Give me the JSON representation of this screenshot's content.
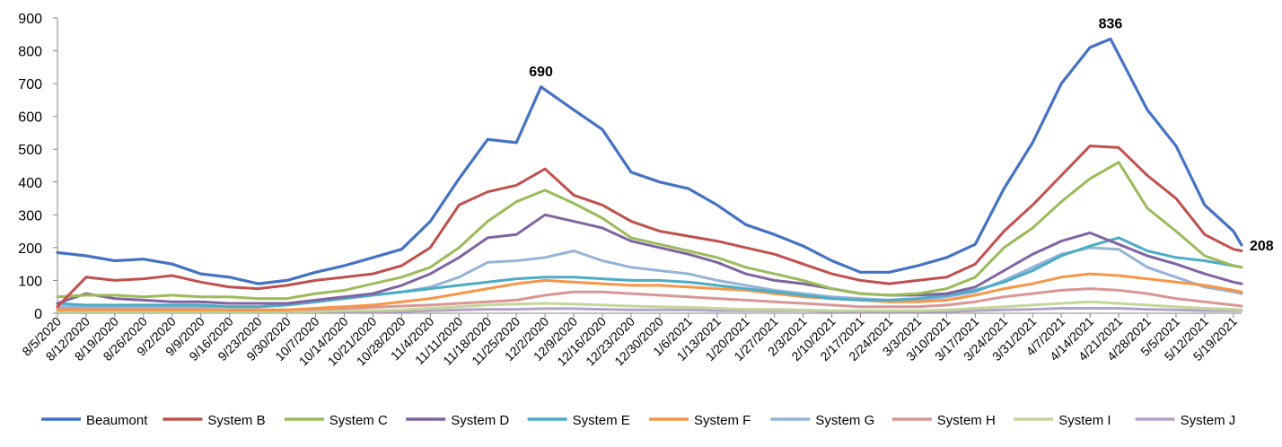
{
  "chart_data": {
    "type": "line",
    "title": "",
    "xlabel": "",
    "ylabel": "",
    "ylim": [
      0,
      900
    ],
    "yticks": [
      0,
      100,
      200,
      300,
      400,
      500,
      600,
      700,
      800,
      900
    ],
    "grid": false,
    "legend_position": "bottom",
    "x_start": "8/5/2020",
    "x_end": "5/21/2021",
    "x_tick_labels": [
      "8/5/2020",
      "8/12/2020",
      "8/19/2020",
      "8/26/2020",
      "9/2/2020",
      "9/9/2020",
      "9/16/2020",
      "9/23/2020",
      "9/30/2020",
      "10/7/2020",
      "10/14/2020",
      "10/21/2020",
      "10/28/2020",
      "11/4/2020",
      "11/11/2020",
      "11/18/2020",
      "11/25/2020",
      "12/2/2020",
      "12/9/2020",
      "12/16/2020",
      "12/23/2020",
      "12/30/2020",
      "1/6/2021",
      "1/13/2021",
      "1/20/2021",
      "1/27/2021",
      "2/3/2021",
      "2/10/2021",
      "2/17/2021",
      "2/24/2021",
      "3/3/2021",
      "3/10/2021",
      "3/17/2021",
      "3/24/2021",
      "3/31/2021",
      "4/7/2021",
      "4/14/2021",
      "4/21/2021",
      "4/28/2021",
      "5/5/2021",
      "5/12/2021",
      "5/19/2021"
    ],
    "series": [
      {
        "name": "Beaumont",
        "color": "#4472C4",
        "width": 3.2,
        "x": [
          "8/5/2020",
          "8/12/2020",
          "8/19/2020",
          "8/26/2020",
          "9/2/2020",
          "9/9/2020",
          "9/16/2020",
          "9/23/2020",
          "9/30/2020",
          "10/7/2020",
          "10/14/2020",
          "10/21/2020",
          "10/28/2020",
          "11/4/2020",
          "11/11/2020",
          "11/18/2020",
          "11/25/2020",
          "12/1/2020",
          "12/9/2020",
          "12/16/2020",
          "12/23/2020",
          "12/30/2020",
          "1/6/2021",
          "1/13/2021",
          "1/20/2021",
          "1/27/2021",
          "2/3/2021",
          "2/10/2021",
          "2/17/2021",
          "2/24/2021",
          "3/3/2021",
          "3/10/2021",
          "3/17/2021",
          "3/24/2021",
          "3/31/2021",
          "4/7/2021",
          "4/14/2021",
          "4/19/2021",
          "4/28/2021",
          "5/5/2021",
          "5/12/2021",
          "5/19/2021",
          "5/21/2021"
        ],
        "values": [
          185,
          175,
          160,
          165,
          150,
          120,
          110,
          90,
          100,
          125,
          145,
          170,
          195,
          280,
          410,
          530,
          520,
          690,
          620,
          560,
          430,
          400,
          380,
          330,
          270,
          240,
          205,
          160,
          125,
          125,
          145,
          170,
          210,
          380,
          520,
          700,
          810,
          836,
          620,
          510,
          330,
          250,
          208
        ]
      },
      {
        "name": "System B",
        "color": "#C0504D",
        "width": 3,
        "x": [
          "8/5/2020",
          "8/12/2020",
          "8/19/2020",
          "8/26/2020",
          "9/2/2020",
          "9/9/2020",
          "9/16/2020",
          "9/23/2020",
          "9/30/2020",
          "10/7/2020",
          "10/14/2020",
          "10/21/2020",
          "10/28/2020",
          "11/4/2020",
          "11/11/2020",
          "11/18/2020",
          "11/25/2020",
          "12/2/2020",
          "12/9/2020",
          "12/16/2020",
          "12/23/2020",
          "12/30/2020",
          "1/6/2021",
          "1/13/2021",
          "1/20/2021",
          "1/27/2021",
          "2/3/2021",
          "2/10/2021",
          "2/17/2021",
          "2/24/2021",
          "3/3/2021",
          "3/10/2021",
          "3/17/2021",
          "3/24/2021",
          "3/31/2021",
          "4/7/2021",
          "4/14/2021",
          "4/21/2021",
          "4/28/2021",
          "5/5/2021",
          "5/12/2021",
          "5/19/2021",
          "5/21/2021"
        ],
        "values": [
          20,
          110,
          100,
          105,
          115,
          95,
          80,
          75,
          85,
          100,
          110,
          120,
          145,
          200,
          330,
          370,
          390,
          440,
          360,
          330,
          280,
          250,
          235,
          220,
          200,
          180,
          150,
          120,
          100,
          90,
          100,
          110,
          150,
          250,
          330,
          420,
          510,
          505,
          420,
          350,
          240,
          195,
          190
        ]
      },
      {
        "name": "System C",
        "color": "#9BBB59",
        "width": 3,
        "x": [
          "8/5/2020",
          "8/12/2020",
          "8/19/2020",
          "8/26/2020",
          "9/2/2020",
          "9/9/2020",
          "9/16/2020",
          "9/23/2020",
          "9/30/2020",
          "10/7/2020",
          "10/14/2020",
          "10/21/2020",
          "10/28/2020",
          "11/4/2020",
          "11/11/2020",
          "11/18/2020",
          "11/25/2020",
          "12/2/2020",
          "12/9/2020",
          "12/16/2020",
          "12/23/2020",
          "12/30/2020",
          "1/6/2021",
          "1/13/2021",
          "1/20/2021",
          "1/27/2021",
          "2/3/2021",
          "2/10/2021",
          "2/17/2021",
          "2/24/2021",
          "3/3/2021",
          "3/10/2021",
          "3/17/2021",
          "3/24/2021",
          "3/31/2021",
          "4/7/2021",
          "4/14/2021",
          "4/21/2021",
          "4/28/2021",
          "5/5/2021",
          "5/12/2021",
          "5/19/2021",
          "5/21/2021"
        ],
        "values": [
          50,
          55,
          55,
          50,
          55,
          50,
          50,
          45,
          45,
          60,
          70,
          90,
          110,
          140,
          200,
          280,
          340,
          375,
          335,
          290,
          230,
          210,
          190,
          170,
          140,
          120,
          100,
          75,
          60,
          55,
          60,
          75,
          110,
          200,
          260,
          340,
          410,
          460,
          320,
          250,
          175,
          145,
          140
        ]
      },
      {
        "name": "System D",
        "color": "#8064A2",
        "width": 3,
        "x": [
          "8/5/2020",
          "8/12/2020",
          "8/19/2020",
          "8/26/2020",
          "9/2/2020",
          "9/9/2020",
          "9/16/2020",
          "9/23/2020",
          "9/30/2020",
          "10/7/2020",
          "10/14/2020",
          "10/21/2020",
          "10/28/2020",
          "11/4/2020",
          "11/11/2020",
          "11/18/2020",
          "11/25/2020",
          "12/2/2020",
          "12/9/2020",
          "12/16/2020",
          "12/23/2020",
          "12/30/2020",
          "1/6/2021",
          "1/13/2021",
          "1/20/2021",
          "1/27/2021",
          "2/3/2021",
          "2/10/2021",
          "2/17/2021",
          "2/24/2021",
          "3/3/2021",
          "3/10/2021",
          "3/17/2021",
          "3/24/2021",
          "3/31/2021",
          "4/7/2021",
          "4/14/2021",
          "4/21/2021",
          "4/28/2021",
          "5/5/2021",
          "5/12/2021",
          "5/19/2021",
          "5/21/2021"
        ],
        "values": [
          30,
          60,
          45,
          40,
          35,
          35,
          30,
          30,
          30,
          40,
          50,
          60,
          85,
          120,
          170,
          230,
          240,
          300,
          280,
          260,
          220,
          200,
          180,
          155,
          120,
          100,
          90,
          75,
          60,
          55,
          55,
          60,
          80,
          130,
          180,
          220,
          245,
          210,
          175,
          150,
          120,
          95,
          90
        ]
      },
      {
        "name": "System E",
        "color": "#4BACC6",
        "width": 3,
        "x": [
          "8/5/2020",
          "8/12/2020",
          "8/19/2020",
          "8/26/2020",
          "9/2/2020",
          "9/9/2020",
          "9/16/2020",
          "9/23/2020",
          "9/30/2020",
          "10/7/2020",
          "10/14/2020",
          "10/21/2020",
          "10/28/2020",
          "11/4/2020",
          "11/11/2020",
          "11/18/2020",
          "11/25/2020",
          "12/2/2020",
          "12/9/2020",
          "12/16/2020",
          "12/23/2020",
          "12/30/2020",
          "1/6/2021",
          "1/13/2021",
          "1/20/2021",
          "1/27/2021",
          "2/3/2021",
          "2/10/2021",
          "2/17/2021",
          "2/24/2021",
          "3/3/2021",
          "3/10/2021",
          "3/17/2021",
          "3/24/2021",
          "3/31/2021",
          "4/7/2021",
          "4/14/2021",
          "4/21/2021",
          "4/28/2021",
          "5/5/2021",
          "5/12/2021",
          "5/19/2021",
          "5/21/2021"
        ],
        "values": [
          30,
          25,
          25,
          25,
          25,
          25,
          20,
          20,
          25,
          35,
          45,
          55,
          65,
          75,
          85,
          95,
          105,
          110,
          110,
          105,
          100,
          100,
          95,
          85,
          75,
          65,
          55,
          45,
          40,
          40,
          45,
          55,
          70,
          95,
          130,
          175,
          205,
          230,
          190,
          170,
          160,
          145,
          140
        ]
      },
      {
        "name": "System F",
        "color": "#F79646",
        "width": 3,
        "x": [
          "8/5/2020",
          "8/12/2020",
          "8/19/2020",
          "8/26/2020",
          "9/2/2020",
          "9/9/2020",
          "9/16/2020",
          "9/23/2020",
          "9/30/2020",
          "10/7/2020",
          "10/14/2020",
          "10/21/2020",
          "10/28/2020",
          "11/4/2020",
          "11/11/2020",
          "11/18/2020",
          "11/25/2020",
          "12/2/2020",
          "12/9/2020",
          "12/16/2020",
          "12/23/2020",
          "12/30/2020",
          "1/6/2021",
          "1/13/2021",
          "1/20/2021",
          "1/27/2021",
          "2/3/2021",
          "2/10/2021",
          "2/17/2021",
          "2/24/2021",
          "3/3/2021",
          "3/10/2021",
          "3/17/2021",
          "3/24/2021",
          "3/31/2021",
          "4/7/2021",
          "4/14/2021",
          "4/21/2021",
          "4/28/2021",
          "5/5/2021",
          "5/12/2021",
          "5/19/2021",
          "5/21/2021"
        ],
        "values": [
          10,
          10,
          10,
          10,
          10,
          10,
          10,
          10,
          10,
          15,
          20,
          25,
          35,
          45,
          60,
          75,
          90,
          100,
          95,
          90,
          85,
          85,
          80,
          75,
          70,
          60,
          50,
          45,
          40,
          35,
          35,
          40,
          55,
          75,
          90,
          110,
          120,
          115,
          105,
          95,
          85,
          70,
          65
        ]
      },
      {
        "name": "System G",
        "color": "#95B3D7",
        "width": 3,
        "x": [
          "8/5/2020",
          "8/12/2020",
          "8/19/2020",
          "8/26/2020",
          "9/2/2020",
          "9/9/2020",
          "9/16/2020",
          "9/23/2020",
          "9/30/2020",
          "10/7/2020",
          "10/14/2020",
          "10/21/2020",
          "10/28/2020",
          "11/4/2020",
          "11/11/2020",
          "11/18/2020",
          "11/25/2020",
          "12/2/2020",
          "12/9/2020",
          "12/16/2020",
          "12/23/2020",
          "12/30/2020",
          "1/6/2021",
          "1/13/2021",
          "1/20/2021",
          "1/27/2021",
          "2/3/2021",
          "2/10/2021",
          "2/17/2021",
          "2/24/2021",
          "3/3/2021",
          "3/10/2021",
          "3/17/2021",
          "3/24/2021",
          "3/31/2021",
          "4/7/2021",
          "4/14/2021",
          "4/21/2021",
          "4/28/2021",
          "5/5/2021",
          "5/12/2021",
          "5/19/2021",
          "5/21/2021"
        ],
        "values": [
          20,
          20,
          20,
          20,
          20,
          20,
          20,
          20,
          25,
          35,
          45,
          55,
          65,
          80,
          110,
          155,
          160,
          170,
          190,
          160,
          140,
          130,
          120,
          100,
          85,
          70,
          60,
          50,
          45,
          40,
          40,
          50,
          65,
          100,
          140,
          180,
          200,
          195,
          140,
          110,
          80,
          65,
          60
        ]
      },
      {
        "name": "System H",
        "color": "#D99694",
        "width": 3,
        "x": [
          "8/5/2020",
          "8/12/2020",
          "8/19/2020",
          "8/26/2020",
          "9/2/2020",
          "9/9/2020",
          "9/16/2020",
          "9/23/2020",
          "9/30/2020",
          "10/7/2020",
          "10/14/2020",
          "10/21/2020",
          "10/28/2020",
          "11/4/2020",
          "11/11/2020",
          "11/18/2020",
          "11/25/2020",
          "12/2/2020",
          "12/9/2020",
          "12/16/2020",
          "12/23/2020",
          "12/30/2020",
          "1/6/2021",
          "1/13/2021",
          "1/20/2021",
          "1/27/2021",
          "2/3/2021",
          "2/10/2021",
          "2/17/2021",
          "2/24/2021",
          "3/3/2021",
          "3/10/2021",
          "3/17/2021",
          "3/24/2021",
          "3/31/2021",
          "4/7/2021",
          "4/14/2021",
          "4/21/2021",
          "4/28/2021",
          "5/5/2021",
          "5/12/2021",
          "5/19/2021",
          "5/21/2021"
        ],
        "values": [
          15,
          15,
          12,
          12,
          12,
          12,
          10,
          10,
          10,
          12,
          15,
          18,
          22,
          25,
          30,
          35,
          40,
          55,
          65,
          65,
          60,
          55,
          50,
          45,
          40,
          35,
          30,
          25,
          20,
          20,
          20,
          25,
          35,
          50,
          60,
          70,
          75,
          70,
          60,
          45,
          35,
          25,
          22
        ]
      },
      {
        "name": "System I",
        "color": "#C3D69B",
        "width": 3,
        "x": [
          "8/5/2020",
          "8/12/2020",
          "8/19/2020",
          "8/26/2020",
          "9/2/2020",
          "9/9/2020",
          "9/16/2020",
          "9/23/2020",
          "9/30/2020",
          "10/7/2020",
          "10/14/2020",
          "10/21/2020",
          "10/28/2020",
          "11/4/2020",
          "11/11/2020",
          "11/18/2020",
          "11/25/2020",
          "12/2/2020",
          "12/9/2020",
          "12/16/2020",
          "12/23/2020",
          "12/30/2020",
          "1/6/2021",
          "1/13/2021",
          "1/20/2021",
          "1/27/2021",
          "2/3/2021",
          "2/10/2021",
          "2/17/2021",
          "2/24/2021",
          "3/3/2021",
          "3/10/2021",
          "3/17/2021",
          "3/24/2021",
          "3/31/2021",
          "4/7/2021",
          "4/14/2021",
          "4/21/2021",
          "4/28/2021",
          "5/5/2021",
          "5/12/2021",
          "5/19/2021",
          "5/21/2021"
        ],
        "values": [
          5,
          5,
          5,
          5,
          5,
          5,
          5,
          5,
          5,
          5,
          8,
          8,
          10,
          15,
          20,
          25,
          28,
          30,
          28,
          25,
          22,
          20,
          18,
          15,
          12,
          12,
          10,
          8,
          8,
          8,
          8,
          10,
          15,
          20,
          25,
          30,
          35,
          30,
          25,
          20,
          15,
          12,
          10
        ]
      },
      {
        "name": "System J",
        "color": "#B3A2C7",
        "width": 3,
        "x": [
          "8/5/2020",
          "8/12/2020",
          "8/19/2020",
          "8/26/2020",
          "9/2/2020",
          "9/9/2020",
          "9/16/2020",
          "9/23/2020",
          "9/30/2020",
          "10/7/2020",
          "10/14/2020",
          "10/21/2020",
          "10/28/2020",
          "11/4/2020",
          "11/11/2020",
          "11/18/2020",
          "11/25/2020",
          "12/2/2020",
          "12/9/2020",
          "12/16/2020",
          "12/23/2020",
          "12/30/2020",
          "1/6/2021",
          "1/13/2021",
          "1/20/2021",
          "1/27/2021",
          "2/3/2021",
          "2/10/2021",
          "2/17/2021",
          "2/24/2021",
          "3/3/2021",
          "3/10/2021",
          "3/17/2021",
          "3/24/2021",
          "3/31/2021",
          "4/7/2021",
          "4/14/2021",
          "4/21/2021",
          "4/28/2021",
          "5/5/2021",
          "5/12/2021",
          "5/19/2021",
          "5/21/2021"
        ],
        "values": [
          5,
          5,
          5,
          5,
          5,
          5,
          5,
          5,
          5,
          5,
          5,
          5,
          5,
          8,
          10,
          12,
          12,
          14,
          14,
          12,
          10,
          10,
          10,
          8,
          8,
          8,
          8,
          5,
          5,
          5,
          5,
          5,
          8,
          10,
          12,
          15,
          15,
          15,
          12,
          10,
          8,
          8,
          8
        ]
      }
    ],
    "annotations": [
      {
        "text": "690",
        "x": "12/1/2020",
        "y": 690
      },
      {
        "text": "836",
        "x": "4/19/2021",
        "y": 836
      },
      {
        "text": "208",
        "x": "5/21/2021",
        "y": 208
      }
    ]
  }
}
